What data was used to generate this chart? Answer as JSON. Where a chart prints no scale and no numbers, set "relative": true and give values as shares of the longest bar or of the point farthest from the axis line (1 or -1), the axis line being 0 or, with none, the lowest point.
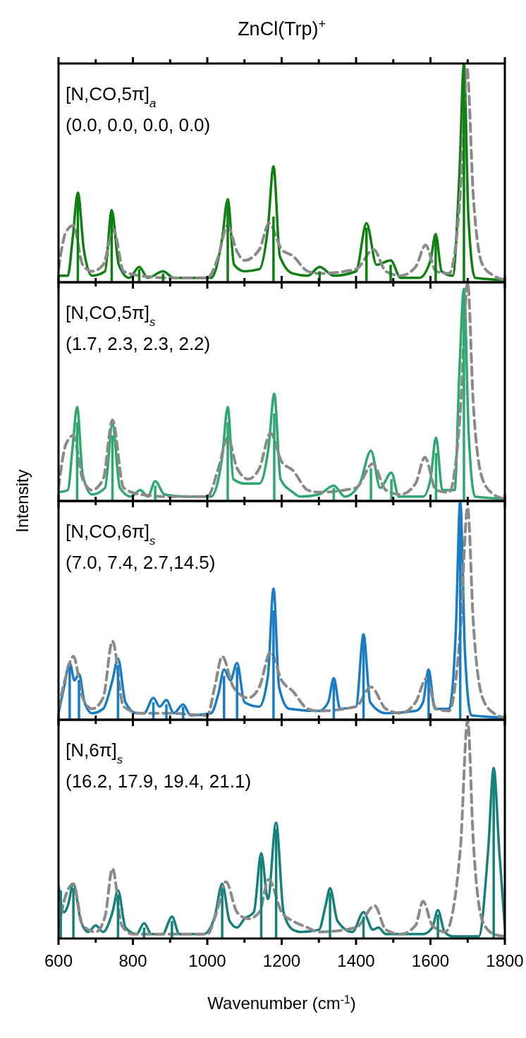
{
  "chart_data": [
    {
      "type": "line",
      "title": "ZnCl(Trp)$^{+}$",
      "relative": true,
      "xlim": [
        600,
        1800
      ],
      "xticks": [
        600,
        {
          "value": 700,
          "label": null
        },
        800,
        {
          "value": 900,
          "label": null
        },
        1000,
        {
          "value": 1100,
          "label": null
        },
        1200,
        {
          "value": 1300,
          "label": null
        },
        1400,
        {
          "value": 1500,
          "label": null
        },
        1600,
        {
          "value": 1700,
          "label": null
        },
        1800
      ],
      "tick_labels": false,
      "annotations": [
        "[N,CO,5π]$_{a}$",
        "(0.0, 0.0, 0.0, 0.0)"
      ],
      "series": [
        {
          "type": "bar",
          "color": "#0f7f12",
          "x": [
            652,
            743,
            817,
            881,
            1055,
            1178,
            1302,
            1428,
            1493,
            1614,
            1690
          ],
          "values": [
            0.4,
            0.32,
            0.06,
            0.04,
            0.36,
            0.3,
            0.05,
            0.25,
            0.08,
            0.2,
            0.98
          ]
        },
        {
          "type": "line",
          "color": "#0f7f12",
          "x": [
            600,
            625,
            638,
            652,
            668,
            690,
            725,
            743,
            762,
            790,
            817,
            840,
            881,
            910,
            950,
            1010,
            1040,
            1055,
            1072,
            1100,
            1140,
            1163,
            1178,
            1195,
            1230,
            1270,
            1302,
            1340,
            1400,
            1428,
            1455,
            1493,
            1520,
            1570,
            1600,
            1614,
            1630,
            1660,
            1678,
            1690,
            1702,
            1720,
            1800
          ],
          "values": [
            0.03,
            0.03,
            0.2,
            0.41,
            0.15,
            0.03,
            0.05,
            0.33,
            0.08,
            0.02,
            0.07,
            0.02,
            0.05,
            0.02,
            0.02,
            0.02,
            0.2,
            0.38,
            0.08,
            0.05,
            0.06,
            0.25,
            0.53,
            0.12,
            0.04,
            0.03,
            0.07,
            0.03,
            0.05,
            0.27,
            0.08,
            0.1,
            0.02,
            0.02,
            0.1,
            0.22,
            0.05,
            0.03,
            0.5,
            1.0,
            0.3,
            0.02,
            0.01
          ]
        },
        {
          "type": "line",
          "color": "#8a8a8a",
          "line_style": "dashed",
          "x": [
            600,
            620,
            640,
            665,
            690,
            720,
            748,
            775,
            820,
            900,
            1000,
            1030,
            1054,
            1080,
            1100,
            1140,
            1166,
            1200,
            1230,
            1270,
            1300,
            1400,
            1447,
            1480,
            1520,
            1560,
            1587,
            1615,
            1650,
            1680,
            1698,
            1715,
            1740,
            1770,
            1800
          ],
          "values": [
            0.06,
            0.23,
            0.26,
            0.08,
            0.05,
            0.08,
            0.24,
            0.05,
            0.03,
            0.02,
            0.02,
            0.12,
            0.26,
            0.14,
            0.1,
            0.15,
            0.27,
            0.15,
            0.12,
            0.05,
            0.04,
            0.06,
            0.15,
            0.05,
            0.03,
            0.07,
            0.17,
            0.05,
            0.04,
            0.4,
            0.98,
            0.4,
            0.08,
            0.03,
            0.01
          ]
        }
      ]
    },
    {
      "type": "line",
      "ylabel": "Intensity",
      "relative": true,
      "xlim": [
        600,
        1800
      ],
      "xticks": [
        600,
        {
          "value": 700,
          "label": null
        },
        800,
        {
          "value": 900,
          "label": null
        },
        1000,
        {
          "value": 1100,
          "label": null
        },
        1200,
        {
          "value": 1300,
          "label": null
        },
        1400,
        {
          "value": 1500,
          "label": null
        },
        1600,
        {
          "value": 1700,
          "label": null
        },
        1800
      ],
      "tick_labels": false,
      "annotations": [
        "[N,CO,5π]$_{s}$",
        "(1.7, 2.3, 2.3, 2.2)"
      ],
      "series": [
        {
          "type": "bar",
          "color": "#2ea870",
          "x": [
            650,
            745,
            860,
            1055,
            1180,
            1340,
            1440,
            1495,
            1615,
            1690
          ],
          "values": [
            0.36,
            0.3,
            0.07,
            0.36,
            0.4,
            0.06,
            0.15,
            0.1,
            0.22,
            0.95
          ]
        },
        {
          "type": "line",
          "color": "#2ea870",
          "x": [
            600,
            625,
            638,
            650,
            665,
            690,
            725,
            745,
            765,
            795,
            820,
            840,
            860,
            885,
            950,
            1010,
            1040,
            1055,
            1070,
            1100,
            1140,
            1165,
            1180,
            1197,
            1230,
            1250,
            1300,
            1340,
            1370,
            1410,
            1440,
            1465,
            1495,
            1515,
            1580,
            1600,
            1615,
            1632,
            1665,
            1678,
            1690,
            1703,
            1720,
            1800
          ],
          "values": [
            0.04,
            0.05,
            0.25,
            0.43,
            0.12,
            0.03,
            0.06,
            0.35,
            0.06,
            0.02,
            0.05,
            0.02,
            0.09,
            0.03,
            0.02,
            0.02,
            0.2,
            0.43,
            0.1,
            0.08,
            0.08,
            0.25,
            0.49,
            0.1,
            0.04,
            0.02,
            0.03,
            0.07,
            0.02,
            0.08,
            0.23,
            0.06,
            0.13,
            0.02,
            0.02,
            0.1,
            0.29,
            0.05,
            0.05,
            0.6,
            0.97,
            0.3,
            0.02,
            0.01
          ]
        },
        {
          "type": "line",
          "color": "#8a8a8a",
          "line_style": "dashed",
          "x": [
            600,
            620,
            640,
            665,
            690,
            720,
            745,
            775,
            820,
            900,
            1000,
            1030,
            1055,
            1080,
            1110,
            1140,
            1170,
            1200,
            1230,
            1270,
            1300,
            1400,
            1445,
            1480,
            1520,
            1560,
            1585,
            1615,
            1650,
            1680,
            1700,
            1715,
            1740,
            1770,
            1800
          ],
          "values": [
            0.06,
            0.26,
            0.3,
            0.1,
            0.05,
            0.1,
            0.37,
            0.06,
            0.03,
            0.02,
            0.02,
            0.15,
            0.29,
            0.15,
            0.1,
            0.15,
            0.31,
            0.18,
            0.14,
            0.05,
            0.04,
            0.06,
            0.17,
            0.05,
            0.03,
            0.08,
            0.2,
            0.05,
            0.04,
            0.4,
            1.0,
            0.45,
            0.1,
            0.03,
            0.01
          ]
        }
      ]
    },
    {
      "type": "line",
      "relative": true,
      "xlim": [
        600,
        1800
      ],
      "xticks": [
        600,
        {
          "value": 700,
          "label": null
        },
        800,
        {
          "value": 900,
          "label": null
        },
        1000,
        {
          "value": 1100,
          "label": null
        },
        1200,
        {
          "value": 1300,
          "label": null
        },
        1400,
        {
          "value": 1500,
          "label": null
        },
        1600,
        {
          "value": 1700,
          "label": null
        },
        1800
      ],
      "tick_labels": false,
      "annotations": [
        "[N,CO,6π]$_{s}$",
        "(7.0, 7.4, 2.7,14.5)"
      ],
      "series": [
        {
          "type": "bar",
          "color": "#1a7dc4",
          "x": [
            630,
            655,
            760,
            855,
            890,
            935,
            1045,
            1080,
            1178,
            1340,
            1420,
            1595,
            1680
          ],
          "values": [
            0.24,
            0.18,
            0.25,
            0.08,
            0.07,
            0.06,
            0.2,
            0.24,
            0.5,
            0.17,
            0.37,
            0.22,
            0.9
          ]
        },
        {
          "type": "line",
          "color": "#1a7dc4",
          "x": [
            600,
            615,
            630,
            643,
            655,
            670,
            690,
            720,
            745,
            760,
            780,
            810,
            830,
            855,
            872,
            890,
            910,
            935,
            955,
            1010,
            1030,
            1045,
            1062,
            1080,
            1100,
            1140,
            1163,
            1178,
            1193,
            1220,
            1300,
            1325,
            1340,
            1357,
            1400,
            1420,
            1438,
            1480,
            1560,
            1580,
            1595,
            1612,
            1650,
            1668,
            1680,
            1693,
            1710,
            1800
          ],
          "values": [
            0.03,
            0.15,
            0.26,
            0.18,
            0.21,
            0.08,
            0.03,
            0.05,
            0.18,
            0.28,
            0.08,
            0.03,
            0.03,
            0.1,
            0.06,
            0.09,
            0.03,
            0.07,
            0.02,
            0.03,
            0.12,
            0.23,
            0.18,
            0.26,
            0.08,
            0.06,
            0.2,
            0.6,
            0.15,
            0.05,
            0.04,
            0.08,
            0.19,
            0.05,
            0.06,
            0.39,
            0.08,
            0.03,
            0.04,
            0.08,
            0.23,
            0.05,
            0.05,
            0.4,
            1.0,
            0.3,
            0.02,
            0.01
          ]
        },
        {
          "type": "line",
          "color": "#8a8a8a",
          "line_style": "dashed",
          "x": [
            600,
            620,
            640,
            665,
            690,
            720,
            745,
            775,
            820,
            900,
            1000,
            1020,
            1040,
            1070,
            1110,
            1140,
            1170,
            1200,
            1230,
            1270,
            1300,
            1400,
            1440,
            1480,
            1520,
            1560,
            1590,
            1615,
            1650,
            1680,
            1700,
            1715,
            1740,
            1770,
            1800
          ],
          "values": [
            0.05,
            0.2,
            0.29,
            0.1,
            0.05,
            0.1,
            0.36,
            0.06,
            0.03,
            0.03,
            0.02,
            0.15,
            0.29,
            0.15,
            0.1,
            0.15,
            0.31,
            0.18,
            0.13,
            0.05,
            0.04,
            0.06,
            0.15,
            0.05,
            0.03,
            0.08,
            0.19,
            0.05,
            0.04,
            0.4,
            0.97,
            0.45,
            0.1,
            0.03,
            0.01
          ]
        }
      ]
    },
    {
      "type": "line",
      "xlabel": "Wavenumber (cm$^{-1}$)",
      "relative": true,
      "xlim": [
        600,
        1800
      ],
      "xticks": [
        600,
        {
          "value": 700,
          "label": null
        },
        800,
        {
          "value": 900,
          "label": null
        },
        1000,
        {
          "value": 1100,
          "label": null
        },
        1200,
        {
          "value": 1300,
          "label": null
        },
        1400,
        {
          "value": 1500,
          "label": null
        },
        1600,
        {
          "value": 1700,
          "label": null
        },
        1800
      ],
      "tick_labels": "x",
      "annotations": [
        "[N,6π]$_{s}$",
        "(16.2, 17.9, 19.4, 21.1)"
      ],
      "series": [
        {
          "type": "bar",
          "color": "#16807a",
          "x": [
            606,
            640,
            760,
            830,
            905,
            1040,
            1145,
            1185,
            1330,
            1420,
            1620,
            1770
          ],
          "values": [
            0.22,
            0.23,
            0.2,
            0.05,
            0.08,
            0.23,
            0.37,
            0.5,
            0.21,
            0.1,
            0.11,
            0.75
          ]
        },
        {
          "type": "line",
          "color": "#16807a",
          "x": [
            600,
            615,
            625,
            640,
            660,
            680,
            700,
            720,
            745,
            760,
            780,
            810,
            830,
            850,
            880,
            905,
            925,
            990,
            1020,
            1040,
            1060,
            1080,
            1100,
            1125,
            1145,
            1163,
            1185,
            1205,
            1230,
            1250,
            1300,
            1318,
            1330,
            1350,
            1390,
            1420,
            1445,
            1460,
            1480,
            1580,
            1605,
            1620,
            1638,
            1660,
            1730,
            1755,
            1770,
            1785,
            1800
          ],
          "values": [
            0.24,
            0.12,
            0.15,
            0.25,
            0.08,
            0.03,
            0.06,
            0.03,
            0.12,
            0.22,
            0.05,
            0.02,
            0.07,
            0.02,
            0.02,
            0.1,
            0.02,
            0.02,
            0.1,
            0.25,
            0.08,
            0.05,
            0.09,
            0.12,
            0.39,
            0.18,
            0.53,
            0.12,
            0.04,
            0.03,
            0.04,
            0.15,
            0.23,
            0.08,
            0.03,
            0.12,
            0.04,
            0.05,
            0.02,
            0.02,
            0.05,
            0.13,
            0.03,
            0.01,
            0.01,
            0.4,
            0.78,
            0.4,
            0.05
          ]
        },
        {
          "type": "line",
          "color": "#8a8a8a",
          "line_style": "dashed",
          "x": [
            600,
            620,
            640,
            665,
            700,
            725,
            745,
            770,
            800,
            1000,
            1025,
            1050,
            1080,
            1110,
            1140,
            1165,
            1200,
            1230,
            1270,
            1300,
            1400,
            1450,
            1480,
            1520,
            1560,
            1580,
            1605,
            1640,
            1680,
            1700,
            1715,
            1740,
            1770,
            1800
          ],
          "values": [
            0.05,
            0.2,
            0.25,
            0.06,
            0.03,
            0.1,
            0.32,
            0.06,
            0.02,
            0.02,
            0.12,
            0.26,
            0.12,
            0.09,
            0.12,
            0.27,
            0.12,
            0.08,
            0.05,
            0.03,
            0.05,
            0.15,
            0.04,
            0.02,
            0.06,
            0.17,
            0.06,
            0.03,
            0.4,
            1.0,
            0.45,
            0.08,
            0.02,
            0.01
          ]
        }
      ]
    }
  ]
}
